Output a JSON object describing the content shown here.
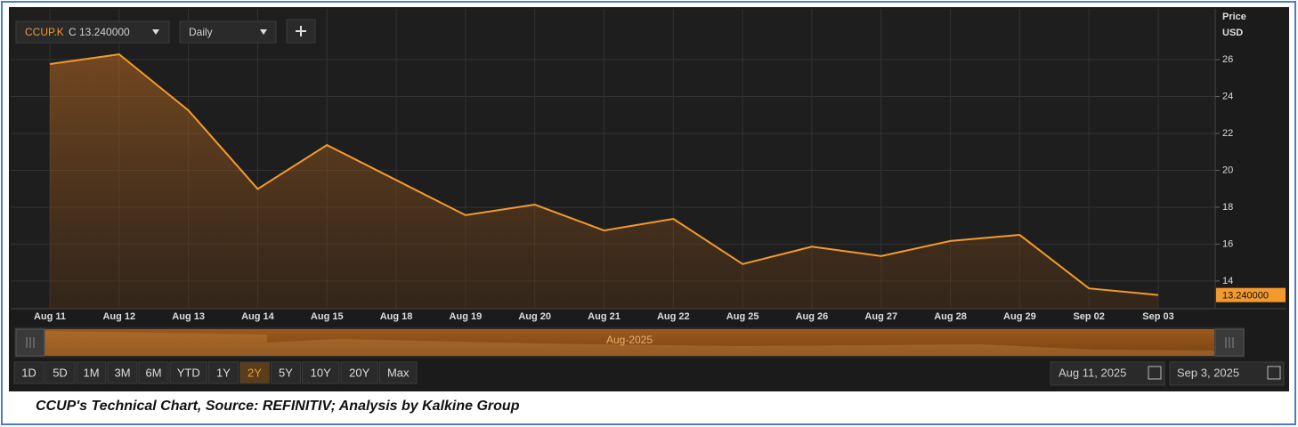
{
  "chart_data": {
    "type": "area",
    "categories": [
      "Aug 11",
      "Aug 12",
      "Aug 13",
      "Aug 14",
      "Aug 15",
      "Aug 18",
      "Aug 19",
      "Aug 20",
      "Aug 21",
      "Aug 22",
      "Aug 25",
      "Aug 26",
      "Aug 27",
      "Aug 28",
      "Aug 29",
      "Sep 02",
      "Sep 03"
    ],
    "values": [
      25.76,
      26.29,
      23.25,
      18.99,
      21.37,
      19.47,
      17.57,
      18.14,
      16.74,
      17.37,
      14.92,
      15.86,
      15.35,
      16.17,
      16.5,
      13.6,
      13.24
    ],
    "value_labels": [
      null,
      null,
      null,
      null,
      null,
      null,
      null,
      null,
      null,
      null,
      null,
      null,
      null,
      null,
      null,
      null,
      "13.240000"
    ],
    "color": "#f39a2e",
    "ylim": [
      12.5,
      28.75
    ],
    "yticks": [
      14,
      16,
      18,
      20,
      22,
      24,
      26
    ],
    "y_label": "Price",
    "y_unit": "USD",
    "grid": true
  },
  "toolbar": {
    "ticker": "CCUP.K",
    "quote": "C 13.240000",
    "interval": "Daily"
  },
  "navigator": {
    "label": "Aug-2025"
  },
  "range_buttons": {
    "labels": [
      "1D",
      "5D",
      "1M",
      "3M",
      "6M",
      "YTD",
      "1Y",
      "2Y",
      "5Y",
      "10Y",
      "20Y",
      "Max"
    ],
    "active": 7
  },
  "date_range": {
    "from": "Aug 11, 2025",
    "to": "Sep 3, 2025"
  },
  "caption": "CCUP's Technical Chart, Source: REFINITIV; Analysis by Kalkine Group"
}
